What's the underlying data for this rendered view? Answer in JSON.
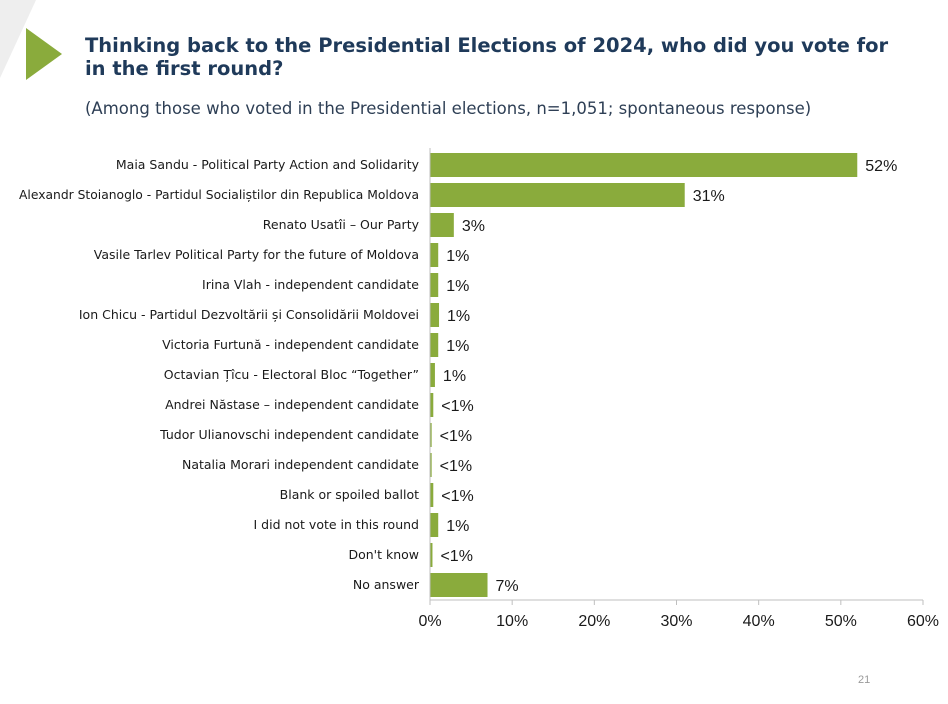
{
  "slide": {
    "title": "Thinking back to the Presidential Elections of 2024, who did you vote for in the first round?",
    "subtitle": "(Among those who voted in the Presidential elections, n=1,051; spontaneous response)",
    "page_number": "21",
    "accent_color": "#8aab3c",
    "corner_color": "#eeeeee"
  },
  "chart_data": {
    "type": "bar",
    "orientation": "horizontal",
    "title": "Thinking back to the Presidential Elections of 2024, who did you vote for in the first round?",
    "subtitle": "(Among those who voted in the Presidential elections, n=1,051; spontaneous response)",
    "categories": [
      "Maia Sandu - Political Party Action and Solidarity",
      "Alexandr Stoianoglo - Partidul Socialiștilor din Republica Moldova",
      "Renato Usatîi – Our Party",
      "Vasile Tarlev Political Party for the future of Moldova",
      "Irina Vlah - independent candidate",
      "Ion Chicu - Partidul Dezvoltării și Consolidării Moldovei",
      "Victoria Furtună - independent candidate",
      "Octavian Țîcu - Electoral Bloc “Together”",
      "Andrei Năstase – independent candidate",
      "Tudor Ulianovschi  independent candidate",
      "Natalia Morari  independent candidate",
      "Blank or spoiled ballot",
      "I did not vote in this round",
      "Don't know",
      "No answer"
    ],
    "values": [
      52.0,
      31.0,
      2.9,
      1.0,
      1.0,
      1.1,
      1.0,
      0.6,
      0.4,
      0.2,
      0.2,
      0.4,
      1.0,
      0.3,
      7.0
    ],
    "data_labels": [
      "52%",
      "31%",
      "3%",
      "1%",
      "1%",
      "1%",
      "1%",
      "1%",
      "<1%",
      "<1%",
      "<1%",
      "<1%",
      "1%",
      "<1%",
      "7%"
    ],
    "xlim": [
      0,
      60
    ],
    "x_ticks": [
      0,
      10,
      20,
      30,
      40,
      50,
      60
    ],
    "x_tick_labels": [
      "0%",
      "10%",
      "20%",
      "30%",
      "40%",
      "50%",
      "60%"
    ],
    "bar_color": "#8aab3c",
    "grid": false,
    "legend": "none"
  }
}
